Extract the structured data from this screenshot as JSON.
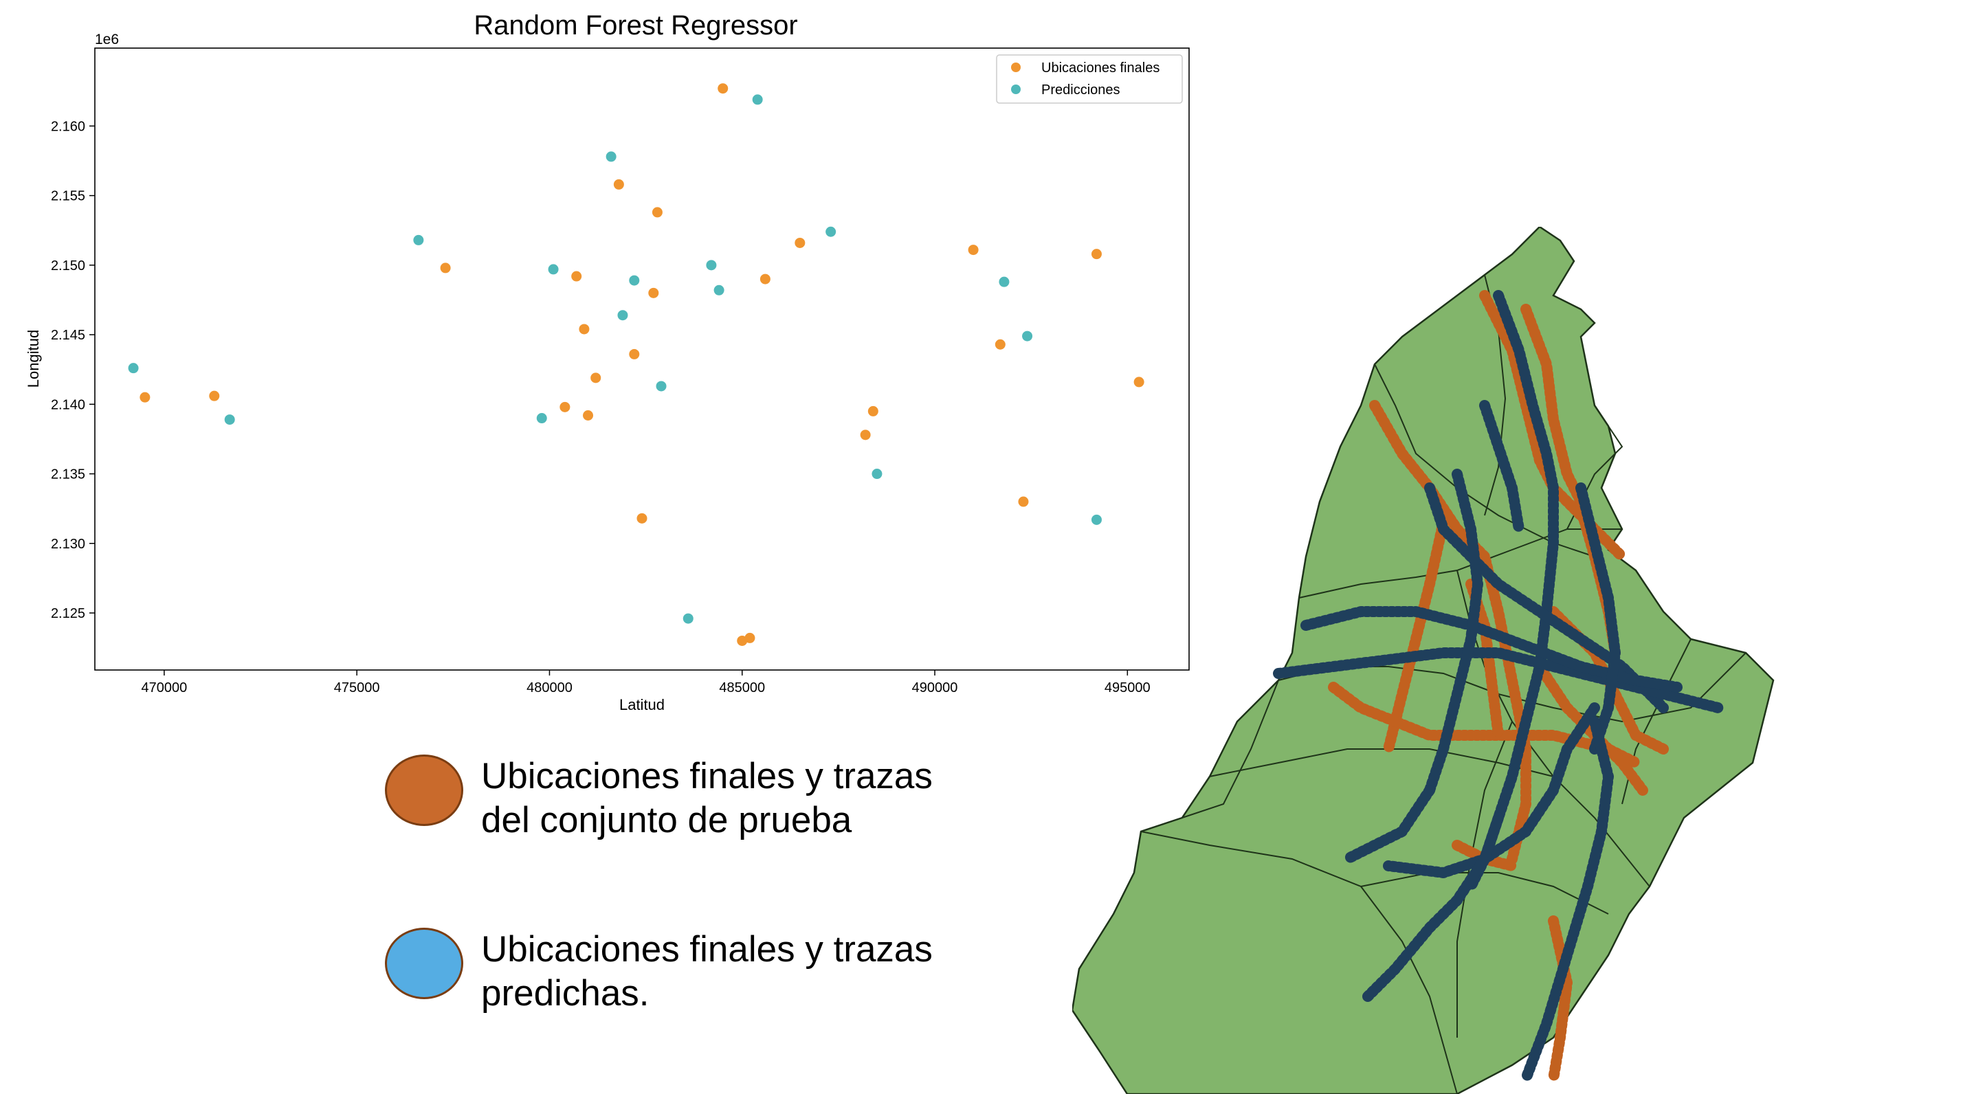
{
  "chart_data": {
    "type": "scatter",
    "title": "Random Forest Regressor",
    "xlabel": "Latitud",
    "ylabel": "Longitud",
    "y_offset_label": "1e6",
    "xlim": [
      468200,
      496600
    ],
    "ylim": [
      2.1209,
      2.1656
    ],
    "xticks": [
      470000,
      475000,
      480000,
      485000,
      490000,
      495000
    ],
    "yticks": [
      2.125,
      2.13,
      2.135,
      2.14,
      2.145,
      2.15,
      2.155,
      2.16
    ],
    "legend_position": "upper right",
    "grid": false,
    "series": [
      {
        "name": "Ubicaciones finales",
        "color": "#f0952f",
        "points": [
          [
            484500,
            2.1627
          ],
          [
            481800,
            2.1558
          ],
          [
            482800,
            2.1538
          ],
          [
            486500,
            2.1516
          ],
          [
            491000,
            2.1511
          ],
          [
            494200,
            2.1508
          ],
          [
            477300,
            2.1498
          ],
          [
            480700,
            2.1492
          ],
          [
            485600,
            2.149
          ],
          [
            482700,
            2.148
          ],
          [
            480900,
            2.1454
          ],
          [
            491700,
            2.1443
          ],
          [
            482200,
            2.1436
          ],
          [
            495300,
            2.1416
          ],
          [
            481200,
            2.1419
          ],
          [
            469500,
            2.1405
          ],
          [
            471300,
            2.1406
          ],
          [
            480400,
            2.1398
          ],
          [
            481000,
            2.1392
          ],
          [
            488400,
            2.1395
          ],
          [
            488200,
            2.1378
          ],
          [
            492300,
            2.133
          ],
          [
            482400,
            2.1318
          ],
          [
            485200,
            2.1232
          ],
          [
            485000,
            2.123
          ]
        ]
      },
      {
        "name": "Predicciones",
        "color": "#4fb8b9",
        "points": [
          [
            485400,
            2.1619
          ],
          [
            481600,
            2.1578
          ],
          [
            487300,
            2.1524
          ],
          [
            476600,
            2.1518
          ],
          [
            480100,
            2.1497
          ],
          [
            484200,
            2.15
          ],
          [
            482200,
            2.1489
          ],
          [
            491800,
            2.1488
          ],
          [
            484400,
            2.1482
          ],
          [
            481900,
            2.1464
          ],
          [
            492400,
            2.1449
          ],
          [
            469200,
            2.1426
          ],
          [
            482900,
            2.1413
          ],
          [
            471700,
            2.1389
          ],
          [
            479800,
            2.139
          ],
          [
            488500,
            2.135
          ],
          [
            494200,
            2.1317
          ],
          [
            483600,
            2.1246
          ]
        ]
      }
    ]
  },
  "legend_cards": [
    {
      "text": "Ubicaciones finales y trazas del conjunto de prueba",
      "color": "#c96a2c"
    },
    {
      "text": "Ubicaciones finales y trazas predichas.",
      "color": "#55ade3"
    }
  ],
  "map": {
    "fill_color": "#82b56b",
    "border_color": "#1e3319",
    "test_trace_color": "#c2611f",
    "predicted_trace_color": "#1f3f5c"
  }
}
